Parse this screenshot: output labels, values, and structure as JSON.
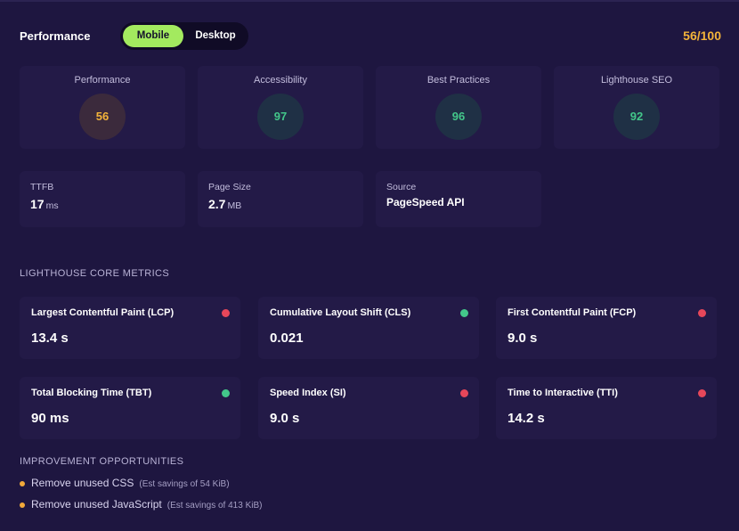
{
  "header": {
    "title": "Performance",
    "toggle": {
      "active": "Mobile",
      "inactive": "Desktop"
    },
    "score": "56/100"
  },
  "scores": [
    {
      "label": "Performance",
      "value": "56",
      "status": "orange"
    },
    {
      "label": "Accessibility",
      "value": "97",
      "status": "green"
    },
    {
      "label": "Best Practices",
      "value": "96",
      "status": "green"
    },
    {
      "label": "Lighthouse SEO",
      "value": "92",
      "status": "green"
    }
  ],
  "info": {
    "ttfb": {
      "label": "TTFB",
      "value": "17",
      "unit": "ms"
    },
    "page_size": {
      "label": "Page Size",
      "value": "2.7",
      "unit": "MB"
    },
    "source": {
      "label": "Source",
      "value": "PageSpeed API"
    }
  },
  "core_metrics": {
    "heading": "LIGHTHOUSE CORE METRICS",
    "items": [
      {
        "label": "Largest Contentful Paint (LCP)",
        "value": "13.4 s",
        "status": "red"
      },
      {
        "label": "Cumulative Layout Shift (CLS)",
        "value": "0.021",
        "status": "green"
      },
      {
        "label": "First Contentful Paint (FCP)",
        "value": "9.0 s",
        "status": "red"
      },
      {
        "label": "Total Blocking Time (TBT)",
        "value": "90 ms",
        "status": "green"
      },
      {
        "label": "Speed Index (SI)",
        "value": "9.0 s",
        "status": "red"
      },
      {
        "label": "Time to Interactive (TTI)",
        "value": "14.2 s",
        "status": "red"
      }
    ]
  },
  "opportunities": {
    "heading": "IMPROVEMENT OPPORTUNITIES",
    "items": [
      {
        "text": "Remove unused CSS",
        "note": "(Est savings of 54 KiB)"
      },
      {
        "text": "Remove unused JavaScript",
        "note": "(Est savings of 413 KiB)"
      }
    ]
  },
  "colors": {
    "background": "#1e1640",
    "card": "#231a47",
    "accent_green": "#a3ea5f",
    "score_orange": "#f2b33a",
    "status_green": "#43c78a",
    "status_red": "#e6475a"
  }
}
